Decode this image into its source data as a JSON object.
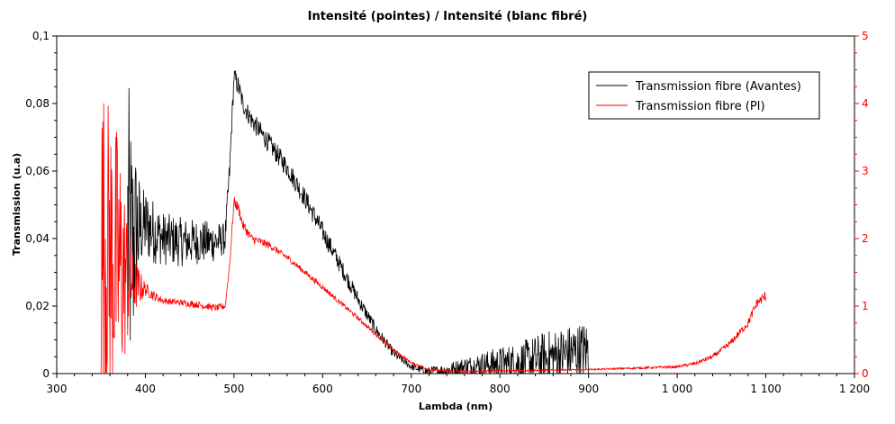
{
  "chart_data": {
    "type": "line",
    "title": "Intensité (pointes) / Intensité (blanc fibré)",
    "xlabel": "Lambda (nm)",
    "ylabel_left": "Transmission (u.a)",
    "ylabel_right": "",
    "xlim": [
      300,
      1200
    ],
    "ylim_left": [
      0,
      0.1
    ],
    "ylim_right": [
      0,
      5
    ],
    "x_ticks": [
      300,
      400,
      500,
      600,
      700,
      800,
      900,
      1000,
      1100,
      1200
    ],
    "x_tick_labels": [
      "300",
      "400",
      "500",
      "600",
      "700",
      "800",
      "900",
      "1 000",
      "1 100",
      "1 200"
    ],
    "y_left_ticks": [
      0,
      0.02,
      0.04,
      0.06,
      0.08,
      0.1
    ],
    "y_left_tick_labels": [
      "0",
      "0,02",
      "0,04",
      "0,06",
      "0,08",
      "0,1"
    ],
    "y_right_ticks": [
      0,
      1,
      2,
      3,
      4,
      5
    ],
    "y_right_tick_labels": [
      "0",
      "1",
      "2",
      "3",
      "4",
      "5"
    ],
    "grid": false,
    "legend_position": "top-right",
    "colors": {
      "avantes": "#000000",
      "pi": "#ff0000",
      "right_axis": "#ff0000"
    },
    "series": [
      {
        "name": "Transmission fibre (Avantes)",
        "axis": "left",
        "color": "#000000",
        "noise_amplitude": [
          [
            380,
            0.05
          ],
          [
            395,
            0.012
          ],
          [
            420,
            0.008
          ],
          [
            480,
            0.006
          ],
          [
            500,
            0.003
          ],
          [
            600,
            0.003
          ],
          [
            700,
            0.001
          ],
          [
            740,
            0.002
          ],
          [
            800,
            0.005
          ],
          [
            850,
            0.008
          ],
          [
            900,
            0.009
          ]
        ],
        "points": [
          [
            380,
            0.04
          ],
          [
            385,
            0.036
          ],
          [
            390,
            0.042
          ],
          [
            400,
            0.044
          ],
          [
            410,
            0.042
          ],
          [
            420,
            0.04
          ],
          [
            440,
            0.039
          ],
          [
            460,
            0.039
          ],
          [
            480,
            0.039
          ],
          [
            490,
            0.04
          ],
          [
            495,
            0.06
          ],
          [
            500,
            0.088
          ],
          [
            505,
            0.085
          ],
          [
            510,
            0.08
          ],
          [
            520,
            0.075
          ],
          [
            540,
            0.068
          ],
          [
            560,
            0.061
          ],
          [
            580,
            0.052
          ],
          [
            600,
            0.042
          ],
          [
            620,
            0.032
          ],
          [
            640,
            0.022
          ],
          [
            660,
            0.013
          ],
          [
            680,
            0.006
          ],
          [
            700,
            0.002
          ],
          [
            720,
            0.0005
          ],
          [
            740,
            0.001
          ],
          [
            760,
            0.002
          ],
          [
            780,
            0.0025
          ],
          [
            800,
            0.003
          ],
          [
            820,
            0.003
          ],
          [
            840,
            0.004
          ],
          [
            860,
            0.005
          ],
          [
            880,
            0.006
          ],
          [
            900,
            0.007
          ]
        ]
      },
      {
        "name": "Transmission fibre (PI)",
        "axis": "right",
        "color": "#ff0000",
        "noise_amplitude": [
          [
            350,
            2.5
          ],
          [
            370,
            2.0
          ],
          [
            385,
            0.5
          ],
          [
            400,
            0.1
          ],
          [
            420,
            0.05
          ],
          [
            490,
            0.05
          ],
          [
            500,
            0.08
          ],
          [
            550,
            0.05
          ],
          [
            650,
            0.03
          ],
          [
            700,
            0.02
          ],
          [
            900,
            0.01
          ],
          [
            1000,
            0.02
          ],
          [
            1050,
            0.04
          ],
          [
            1080,
            0.06
          ],
          [
            1100,
            0.08
          ]
        ],
        "points": [
          [
            350,
            2.0
          ],
          [
            360,
            1.8
          ],
          [
            370,
            1.6
          ],
          [
            380,
            1.4
          ],
          [
            390,
            1.3
          ],
          [
            400,
            1.25
          ],
          [
            410,
            1.15
          ],
          [
            420,
            1.08
          ],
          [
            440,
            1.05
          ],
          [
            460,
            1.02
          ],
          [
            480,
            0.97
          ],
          [
            490,
            1.0
          ],
          [
            495,
            1.6
          ],
          [
            500,
            2.55
          ],
          [
            505,
            2.45
          ],
          [
            510,
            2.2
          ],
          [
            520,
            2.0
          ],
          [
            540,
            1.9
          ],
          [
            560,
            1.72
          ],
          [
            580,
            1.5
          ],
          [
            600,
            1.28
          ],
          [
            620,
            1.05
          ],
          [
            640,
            0.82
          ],
          [
            660,
            0.58
          ],
          [
            680,
            0.35
          ],
          [
            700,
            0.16
          ],
          [
            720,
            0.06
          ],
          [
            740,
            0.04
          ],
          [
            760,
            0.03
          ],
          [
            800,
            0.04
          ],
          [
            850,
            0.05
          ],
          [
            900,
            0.06
          ],
          [
            950,
            0.08
          ],
          [
            1000,
            0.1
          ],
          [
            1020,
            0.15
          ],
          [
            1040,
            0.25
          ],
          [
            1060,
            0.45
          ],
          [
            1080,
            0.75
          ],
          [
            1090,
            1.05
          ],
          [
            1100,
            1.15
          ]
        ]
      }
    ]
  }
}
